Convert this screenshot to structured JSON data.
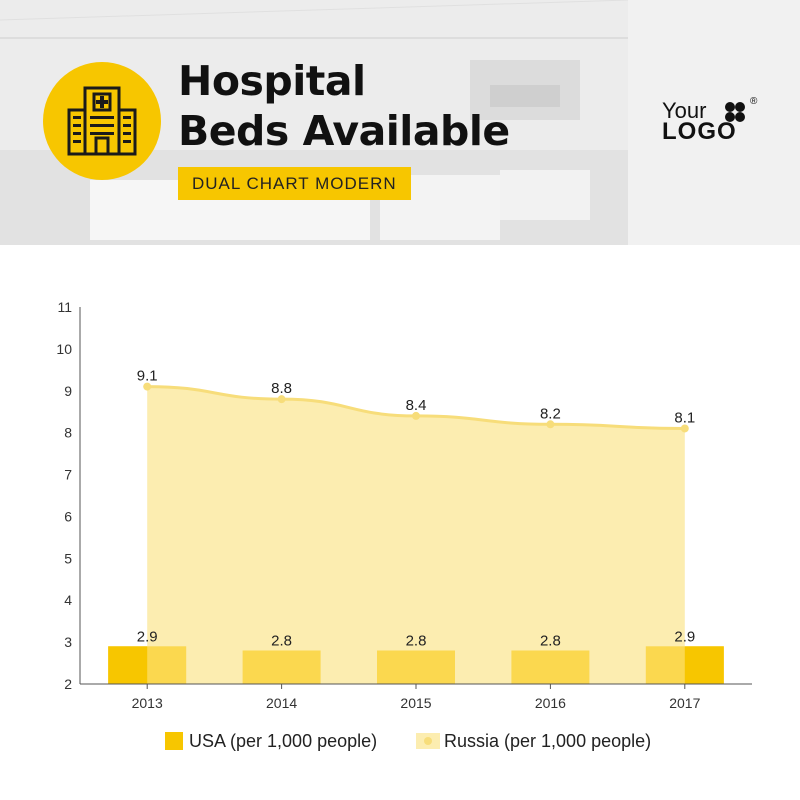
{
  "header": {
    "title_line1": "Hospital",
    "title_line2": "Beds Available",
    "tag": "DUAL CHART MODERN",
    "badge_icon": "hospital-building-icon"
  },
  "brand": {
    "your": "Your",
    "logo": "LOGO",
    "reg": "®"
  },
  "colors": {
    "accent": "#f7c600",
    "bar_light": "#fbd84f",
    "area_fill": "#fcedb0",
    "area_line": "#f7dd7a"
  },
  "legend": {
    "usa": "USA (per 1,000 people)",
    "russia": "Russia (per 1,000 people)"
  },
  "chart_data": {
    "type": "bar",
    "categories": [
      "2013",
      "2014",
      "2015",
      "2016",
      "2017"
    ],
    "series": [
      {
        "name": "USA (per 1,000 people)",
        "type": "bar",
        "values": [
          2.9,
          2.8,
          2.8,
          2.8,
          2.9
        ]
      },
      {
        "name": "Russia (per 1,000 people)",
        "type": "area",
        "values": [
          9.1,
          8.8,
          8.4,
          8.2,
          8.1
        ]
      }
    ],
    "ylim": [
      2,
      11
    ],
    "yticks": [
      "2",
      "3",
      "4",
      "5",
      "6",
      "7",
      "8",
      "9",
      "10",
      "11"
    ],
    "data_labels": {
      "usa": [
        "2.9",
        "2.8",
        "2.8",
        "2.8",
        "2.9"
      ],
      "russia": [
        "9.1",
        "8.8",
        "8.4",
        "8.2",
        "8.1"
      ]
    },
    "grid": false,
    "legend_position": "bottom"
  }
}
